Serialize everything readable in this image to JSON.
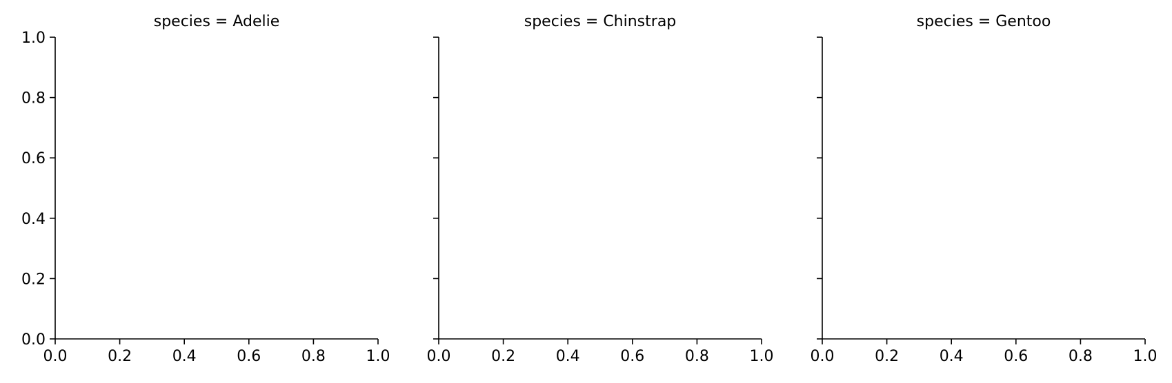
{
  "chart_data": [
    {
      "type": "scatter",
      "title": "species = Adelie",
      "xlabel": "",
      "ylabel": "",
      "xlim": [
        0.0,
        1.0
      ],
      "ylim": [
        0.0,
        1.0
      ],
      "xticks": [
        "0.0",
        "0.2",
        "0.4",
        "0.6",
        "0.8",
        "1.0"
      ],
      "yticks": [
        "0.0",
        "0.2",
        "0.4",
        "0.6",
        "0.8",
        "1.0"
      ],
      "show_ytick_labels": true,
      "grid": false,
      "series": []
    },
    {
      "type": "scatter",
      "title": "species = Chinstrap",
      "xlabel": "",
      "ylabel": "",
      "xlim": [
        0.0,
        1.0
      ],
      "ylim": [
        0.0,
        1.0
      ],
      "xticks": [
        "0.0",
        "0.2",
        "0.4",
        "0.6",
        "0.8",
        "1.0"
      ],
      "yticks": [
        "0.0",
        "0.2",
        "0.4",
        "0.6",
        "0.8",
        "1.0"
      ],
      "show_ytick_labels": false,
      "grid": false,
      "series": []
    },
    {
      "type": "scatter",
      "title": "species = Gentoo",
      "xlabel": "",
      "ylabel": "",
      "xlim": [
        0.0,
        1.0
      ],
      "ylim": [
        0.0,
        1.0
      ],
      "xticks": [
        "0.0",
        "0.2",
        "0.4",
        "0.6",
        "0.8",
        "1.0"
      ],
      "yticks": [
        "0.0",
        "0.2",
        "0.4",
        "0.6",
        "0.8",
        "1.0"
      ],
      "show_ytick_labels": false,
      "grid": false,
      "series": []
    }
  ]
}
